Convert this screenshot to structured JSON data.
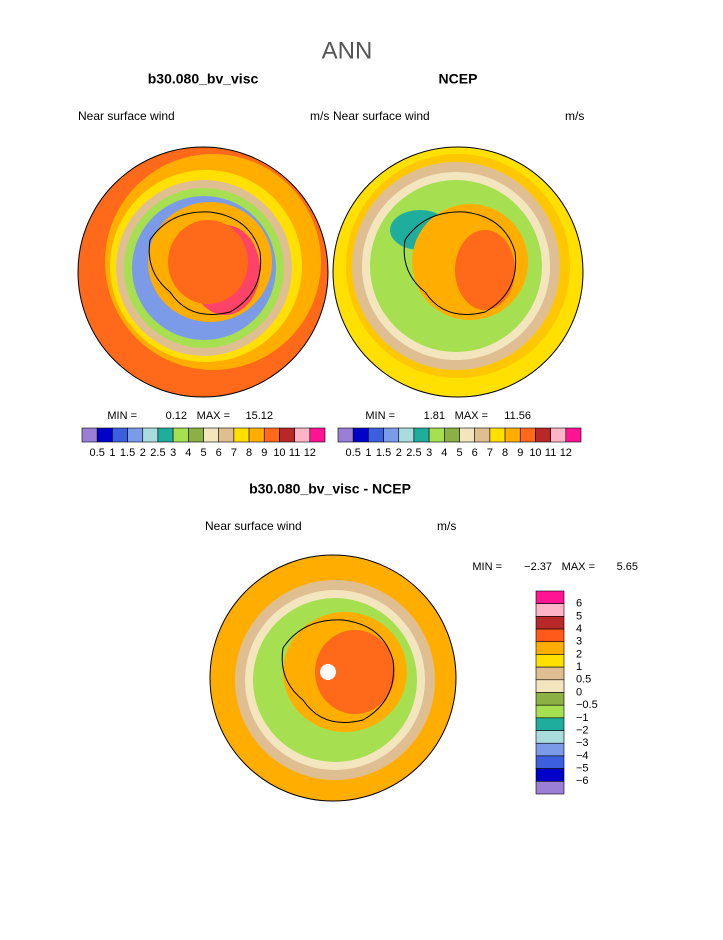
{
  "title": "ANN",
  "panels": [
    {
      "title": "b30.080_bv_visc",
      "left_label": "Near surface wind",
      "right_label": "m/s",
      "min_label": "MIN =",
      "min": "0.12",
      "max_label": "MAX =",
      "max": "15.12"
    },
    {
      "title": "NCEP",
      "left_label": "Near surface wind",
      "right_label": "m/s",
      "min_label": "MIN =",
      "min": "1.81",
      "max_label": "MAX =",
      "max": "11.56"
    },
    {
      "title": "b30.080_bv_visc - NCEP",
      "left_label": "Near surface wind",
      "right_label": "m/s",
      "min_label": "MIN =",
      "min": "−2.37",
      "max_label": "MAX =",
      "max": "5.65"
    }
  ],
  "colorbar": {
    "labels": [
      "0.5",
      "1",
      "1.5",
      "2",
      "2.5",
      "3",
      "4",
      "5",
      "6",
      "7",
      "8",
      "9",
      "10",
      "11",
      "12"
    ],
    "colors": [
      "#9b7fd6",
      "#0000c8",
      "#3c5fe0",
      "#7b9ae8",
      "#a9dcdc",
      "#1fae9e",
      "#a6e050",
      "#8cb044",
      "#f3e6bf",
      "#dfbf91",
      "#ffe000",
      "#ffae00",
      "#ff6a1a",
      "#b82828",
      "#ffb3c6",
      "#ff1493"
    ]
  },
  "diff_colorbar": {
    "labels": [
      "6",
      "5",
      "4",
      "3",
      "2",
      "1",
      "0.5",
      "0",
      "−0.5",
      "−1",
      "−2",
      "−3",
      "−4",
      "−5",
      "−6"
    ],
    "colors": [
      "#ff1493",
      "#ffb3c6",
      "#b82828",
      "#ff5a1a",
      "#ffae00",
      "#ffe000",
      "#dfbf91",
      "#f3e6bf",
      "#8cb044",
      "#a6e050",
      "#1fae9e",
      "#a9dcdc",
      "#7b9ae8",
      "#3c5fe0",
      "#0000c8",
      "#9b7fd6"
    ]
  }
}
